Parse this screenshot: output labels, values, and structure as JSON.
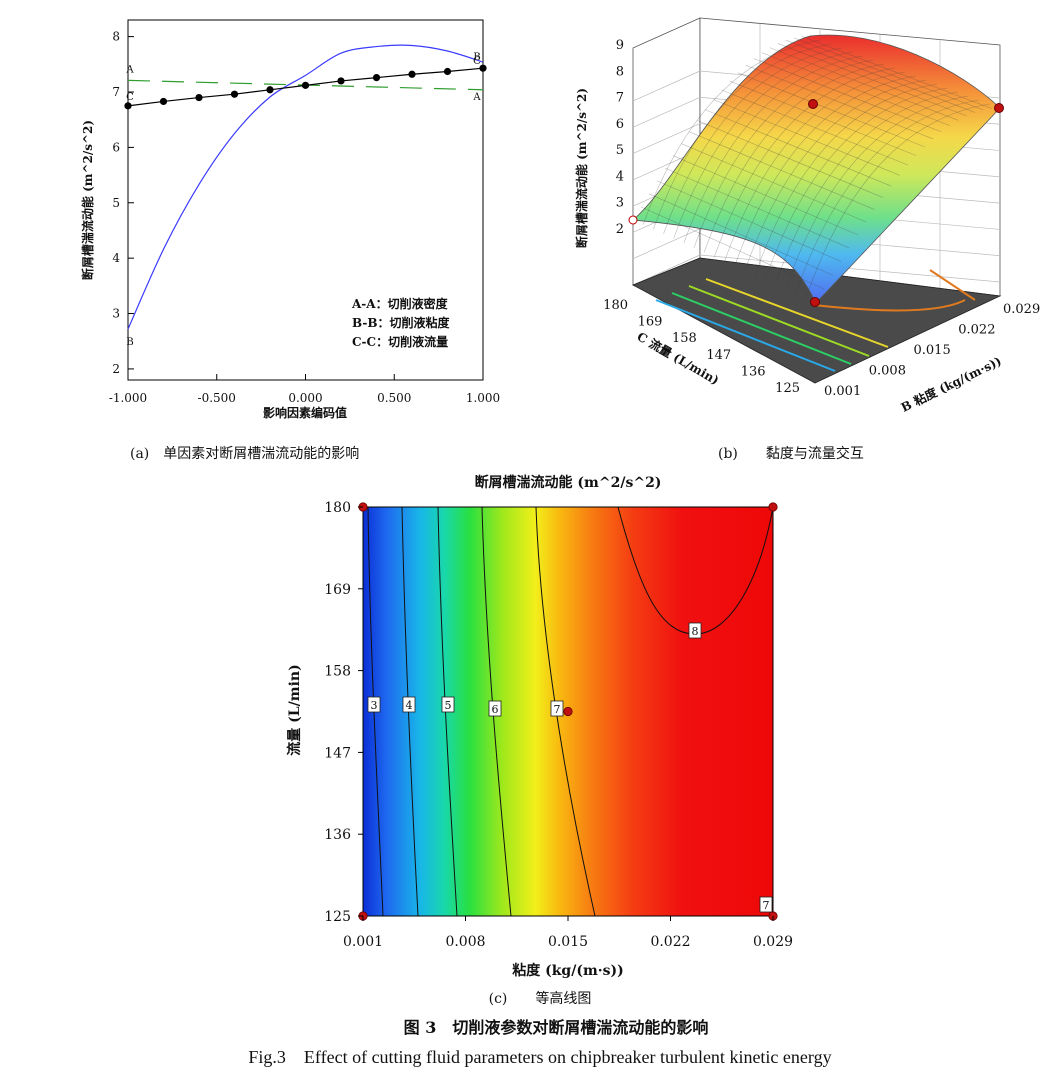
{
  "panel_a": {
    "caption": "(a)　单因素对断屑槽湍流动能的影响",
    "chart_data": {
      "type": "line",
      "title": "",
      "xlabel": "影响因素编码值",
      "ylabel": "断屑槽湍流动能 (m^2/s^2)",
      "xlim": [
        -1.0,
        1.0
      ],
      "ylim": [
        1.8,
        8.3
      ],
      "x_ticks": [
        "-1.000",
        "-0.500",
        "0.000",
        "0.500",
        "1.000"
      ],
      "y_ticks": [
        "2",
        "3",
        "4",
        "5",
        "6",
        "7",
        "8"
      ],
      "legend": {
        "position": "bottom-right",
        "entries": [
          "A-A：切削液密度",
          "B-B：切削液粘度",
          "C-C：切削液流量"
        ]
      },
      "series": [
        {
          "name": "A",
          "style": "dashed",
          "color": "#2e9e2e",
          "x": [
            -1.0,
            1.0
          ],
          "y": [
            7.21,
            7.04
          ],
          "end_labels": [
            "A",
            "A"
          ]
        },
        {
          "name": "B",
          "style": "solid",
          "color": "#3b3bff",
          "x": [
            -1.0,
            -0.8,
            -0.6,
            -0.4,
            -0.2,
            0.0,
            0.2,
            0.4,
            0.6,
            0.8,
            1.0
          ],
          "y": [
            2.72,
            4.16,
            5.33,
            6.25,
            6.91,
            7.3,
            7.7,
            7.82,
            7.84,
            7.74,
            7.54
          ],
          "end_labels": [
            "B",
            "B"
          ]
        },
        {
          "name": "C",
          "style": "solid-markers",
          "color": "#000000",
          "x": [
            -1.0,
            -0.8,
            -0.6,
            -0.4,
            -0.2,
            0.0,
            0.2,
            0.4,
            0.6,
            0.8,
            1.0
          ],
          "y": [
            6.75,
            6.83,
            6.9,
            6.96,
            7.04,
            7.12,
            7.2,
            7.26,
            7.32,
            7.37,
            7.43
          ],
          "end_labels": [
            "C",
            "C"
          ]
        }
      ]
    }
  },
  "panel_b": {
    "caption": "(b)　　黏度与流量交互",
    "chart_data": {
      "type": "surface",
      "zlabel": "断屑槽湍流动能 (m^2/s^2)",
      "xlabel": "B 粘度 (kg/(m·s))",
      "ylabel": "C 流量 (L/min)",
      "x_ticks": [
        "0.001",
        "0.008",
        "0.015",
        "0.022",
        "0.029"
      ],
      "y_ticks": [
        "125",
        "136",
        "147",
        "158",
        "169",
        "180"
      ],
      "z_ticks": [
        "2",
        "3",
        "4",
        "5",
        "6",
        "7",
        "8",
        "9"
      ],
      "zlim": [
        2,
        9
      ]
    }
  },
  "panel_c": {
    "caption": "(c)　　等高线图",
    "chart_data": {
      "type": "contour",
      "title": "断屑槽湍流动能 (m^2/s^2)",
      "xlabel": "粘度 (kg/(m·s))",
      "ylabel": "流量 (L/min)",
      "xlim": [
        0.001,
        0.029
      ],
      "ylim": [
        125,
        180
      ],
      "x_ticks": [
        "0.001",
        "0.008",
        "0.015",
        "0.022",
        "0.029"
      ],
      "y_ticks": [
        "125",
        "136",
        "147",
        "158",
        "169",
        "180"
      ],
      "contour_labels": [
        "3",
        "4",
        "5",
        "6",
        "7",
        "8",
        "7"
      ],
      "design_points": [
        {
          "x": 0.001,
          "y": 180
        },
        {
          "x": 0.029,
          "y": 180
        },
        {
          "x": 0.001,
          "y": 125
        },
        {
          "x": 0.029,
          "y": 125
        },
        {
          "x": 0.015,
          "y": 152.5
        }
      ]
    }
  },
  "figure": {
    "caption_cn": "图 3　切削液参数对断屑槽湍流动能的影响",
    "caption_en": "Fig.3　Effect of cutting fluid parameters on chipbreaker turbulent kinetic energy"
  }
}
